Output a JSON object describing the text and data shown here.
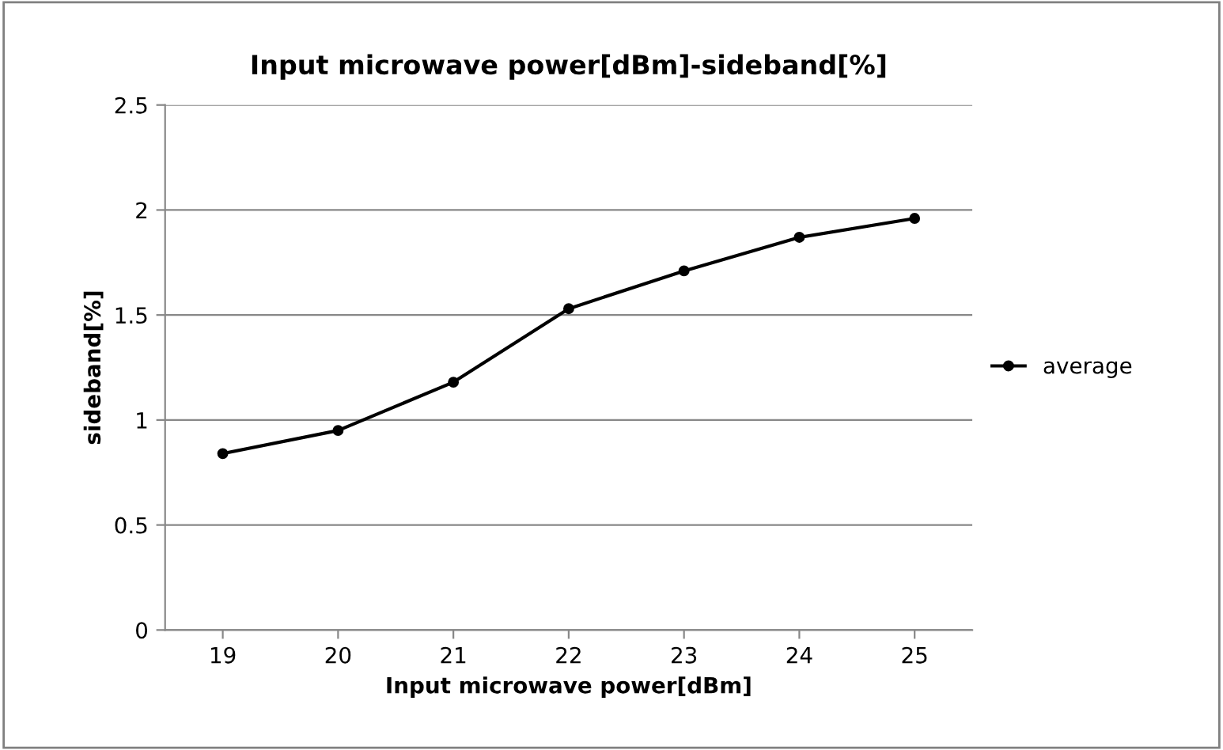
{
  "chart_data": {
    "type": "line",
    "title": "Input microwave power[dBm]-sideband[%]",
    "xlabel": "Input microwave power[dBm]",
    "ylabel": "sideband[%]",
    "categories": [
      "19",
      "20",
      "21",
      "22",
      "23",
      "24",
      "25"
    ],
    "series": [
      {
        "name": "average",
        "color": "#000000",
        "values": [
          0.84,
          0.95,
          1.18,
          1.53,
          1.71,
          1.87,
          1.96
        ]
      }
    ],
    "ylim": [
      0,
      2.5
    ],
    "yticks": [
      0,
      0.5,
      1,
      1.5,
      2,
      2.5
    ],
    "grid": "y",
    "legend": "right",
    "marker": "circle",
    "line_style": "solid"
  }
}
